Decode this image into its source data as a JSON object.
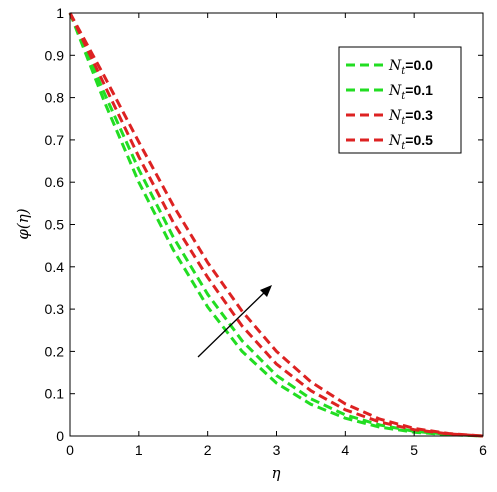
{
  "chart_data": {
    "type": "line",
    "title": "",
    "xlabel": "η",
    "ylabel": "φ(η)",
    "xlim": [
      0,
      6
    ],
    "ylim": [
      0,
      1
    ],
    "x_ticks": [
      "0",
      "1",
      "2",
      "3",
      "4",
      "5",
      "6"
    ],
    "y_ticks": [
      "0",
      "0.1",
      "0.2",
      "0.3",
      "0.4",
      "0.5",
      "0.6",
      "0.7",
      "0.8",
      "0.9",
      "1"
    ],
    "grid": false,
    "legend_position": "top-right",
    "annotation": "arrow indicating increasing Nt",
    "x": [
      0,
      0.5,
      1,
      1.5,
      2,
      2.5,
      3,
      3.5,
      4,
      4.5,
      5,
      5.5,
      6
    ],
    "series": [
      {
        "name": "Nt=0.0",
        "symbol": "N",
        "subscript": "t",
        "value_text": "=0.0",
        "color": "#22dd22",
        "values": [
          1.0,
          0.79,
          0.6,
          0.44,
          0.305,
          0.2,
          0.125,
          0.075,
          0.042,
          0.021,
          0.009,
          0.003,
          0.0
        ]
      },
      {
        "name": "Nt=0.1",
        "symbol": "N",
        "subscript": "t",
        "value_text": "=0.1",
        "color": "#22dd22",
        "values": [
          1.0,
          0.81,
          0.63,
          0.47,
          0.335,
          0.225,
          0.143,
          0.088,
          0.05,
          0.026,
          0.011,
          0.004,
          0.0
        ]
      },
      {
        "name": "Nt=0.3",
        "symbol": "N",
        "subscript": "t",
        "value_text": "=0.3",
        "color": "#dd2222",
        "values": [
          1.0,
          0.83,
          0.66,
          0.505,
          0.375,
          0.26,
          0.17,
          0.107,
          0.062,
          0.033,
          0.015,
          0.005,
          0.0
        ]
      },
      {
        "name": "Nt=0.5",
        "symbol": "N",
        "subscript": "t",
        "value_text": "=0.5",
        "color": "#dd2222",
        "values": [
          1.0,
          0.85,
          0.695,
          0.545,
          0.41,
          0.295,
          0.2,
          0.128,
          0.076,
          0.04,
          0.018,
          0.006,
          0.0
        ]
      }
    ]
  }
}
